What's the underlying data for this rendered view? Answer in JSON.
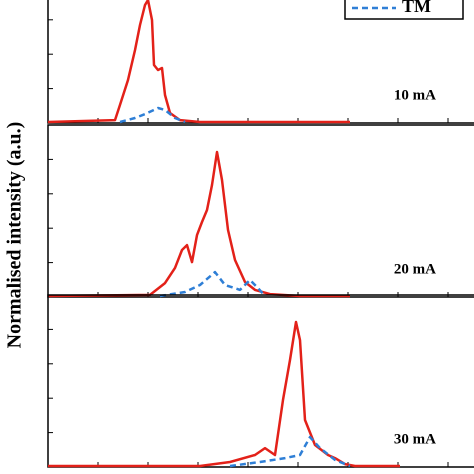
{
  "chart_data": [
    {
      "type": "line",
      "ylabel": "Normalised intensity (a.u.)",
      "annotation": "10 mA",
      "xlim": [
        0,
        426
      ],
      "xticks": [
        50,
        100,
        150,
        200,
        250,
        300,
        350,
        400
      ],
      "ylim": [
        0,
        1
      ],
      "yticks": [
        0,
        0.2,
        0.4,
        0.6,
        0.8,
        1
      ],
      "legend": "upper right",
      "series": [
        {
          "color": "#e32119",
          "style": "solid",
          "x": [
            0,
            67,
            72,
            80,
            87,
            92,
            97,
            100,
            104,
            106,
            110,
            114,
            117,
            122,
            132,
            152,
            302
          ],
          "values": [
            0.006,
            0.017,
            0.105,
            0.25,
            0.424,
            0.57,
            0.686,
            0.715,
            0.599,
            0.337,
            0.308,
            0.32,
            0.163,
            0.058,
            0.017,
            0.006,
            0.006
          ]
        },
        {
          "name": "TM",
          "color": "#2f7fd6",
          "style": "dashed",
          "x": [
            72,
            87,
            97,
            110,
            117,
            127,
            137
          ],
          "values": [
            0.006,
            0.029,
            0.052,
            0.087,
            0.076,
            0.029,
            0.006
          ]
        }
      ]
    },
    {
      "type": "line",
      "annotation": "20 mA",
      "xlim": [
        0,
        426
      ],
      "xticks": [
        50,
        100,
        150,
        200,
        250,
        300,
        350,
        400
      ],
      "ylim": [
        0,
        1
      ],
      "yticks": [
        0,
        0.2,
        0.4,
        0.6,
        0.8,
        1
      ],
      "series": [
        {
          "color": "#e32119",
          "style": "solid",
          "x": [
            0,
            102,
            117,
            127,
            134,
            139,
            144,
            149,
            154,
            159,
            164,
            169,
            174,
            180,
            187,
            197,
            207,
            222,
            252,
            302
          ],
          "values": [
            0.006,
            0.012,
            0.081,
            0.169,
            0.273,
            0.302,
            0.203,
            0.36,
            0.436,
            0.506,
            0.651,
            0.843,
            0.68,
            0.39,
            0.215,
            0.087,
            0.041,
            0.017,
            0.006,
            0.006
          ]
        },
        {
          "color": "#2f7fd6",
          "style": "dashed",
          "x": [
            112,
            137,
            152,
            167,
            177,
            192,
            202,
            210,
            217
          ],
          "values": [
            0.006,
            0.029,
            0.07,
            0.145,
            0.07,
            0.041,
            0.099,
            0.052,
            0.006
          ]
        }
      ]
    },
    {
      "type": "line",
      "annotation": "30 mA",
      "xlim": [
        0,
        426
      ],
      "xticks": [
        50,
        100,
        150,
        200,
        250,
        300,
        350,
        400
      ],
      "ylim": [
        0,
        1
      ],
      "yticks": [
        0,
        0.2,
        0.4,
        0.6,
        0.8,
        1
      ],
      "series": [
        {
          "color": "#e32119",
          "style": "solid",
          "x": [
            0,
            152,
            182,
            207,
            217,
            227,
            235,
            242,
            248,
            252,
            257,
            267,
            280,
            287,
            297,
            307,
            352
          ],
          "values": [
            0.006,
            0.006,
            0.029,
            0.07,
            0.11,
            0.07,
            0.39,
            0.622,
            0.843,
            0.738,
            0.273,
            0.128,
            0.07,
            0.052,
            0.017,
            0.006,
            0.006
          ]
        },
        {
          "color": "#2f7fd6",
          "style": "dashed",
          "x": [
            182,
            212,
            237,
            252,
            262,
            272,
            287,
            302
          ],
          "values": [
            0.006,
            0.029,
            0.052,
            0.07,
            0.174,
            0.11,
            0.041,
            0.006
          ]
        }
      ]
    }
  ]
}
